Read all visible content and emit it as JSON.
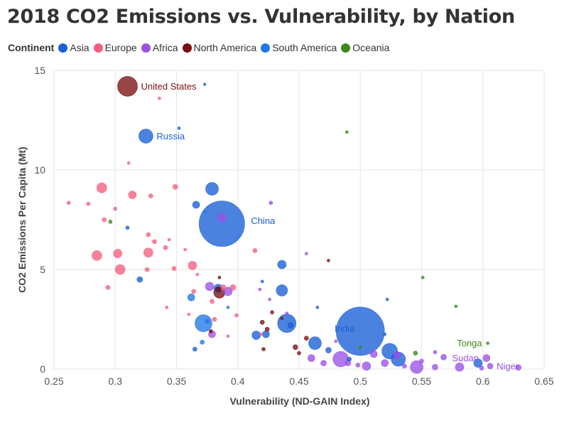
{
  "chart_data": {
    "type": "scatter",
    "title": "2018 CO2 Emissions vs. Vulnerability, by Nation",
    "xlabel": "Vulnerability (ND-GAIN Index)",
    "ylabel": "CO2 Emissions Per Capita (Mt)",
    "xlim": [
      0.25,
      0.65
    ],
    "ylim": [
      0,
      15
    ],
    "xticks": [
      "0.25",
      "0.3",
      "0.35",
      "0.4",
      "0.45",
      "0.5",
      "0.55",
      "0.6",
      "0.65"
    ],
    "yticks": [
      "0",
      "5",
      "10",
      "15"
    ],
    "grid": true,
    "size_encodes": "total emissions",
    "legend": {
      "title": "Continent",
      "placement": "top-left",
      "items": [
        {
          "label": "Asia",
          "color": "#1a5fd6"
        },
        {
          "label": "Europe",
          "color": "#f4607e"
        },
        {
          "label": "Africa",
          "color": "#9a52e6"
        },
        {
          "label": "North America",
          "color": "#7a1111"
        },
        {
          "label": "South America",
          "color": "#1f78e6"
        },
        {
          "label": "Oceania",
          "color": "#3a8a1e"
        }
      ]
    },
    "series": [
      {
        "name": "Asia",
        "color": "#1a5fd6",
        "points": [
          {
            "x": 0.5,
            "y": 1.9,
            "s": 34
          },
          {
            "x": 0.387,
            "y": 7.3,
            "s": 32
          },
          {
            "x": 0.325,
            "y": 11.7,
            "s": 10
          },
          {
            "x": 0.379,
            "y": 9.05,
            "s": 9
          },
          {
            "x": 0.44,
            "y": 2.3,
            "s": 13
          },
          {
            "x": 0.524,
            "y": 0.9,
            "s": 11
          },
          {
            "x": 0.531,
            "y": 0.5,
            "s": 10
          },
          {
            "x": 0.463,
            "y": 1.3,
            "s": 9
          },
          {
            "x": 0.436,
            "y": 3.95,
            "s": 8
          },
          {
            "x": 0.436,
            "y": 5.25,
            "s": 6
          },
          {
            "x": 0.366,
            "y": 8.25,
            "s": 5
          },
          {
            "x": 0.384,
            "y": 4.05,
            "s": 6
          },
          {
            "x": 0.415,
            "y": 1.7,
            "s": 6
          },
          {
            "x": 0.423,
            "y": 1.75,
            "s": 5
          },
          {
            "x": 0.32,
            "y": 4.5,
            "s": 4
          },
          {
            "x": 0.596,
            "y": 0.3,
            "s": 6
          },
          {
            "x": 0.352,
            "y": 12.1,
            "s": 2
          },
          {
            "x": 0.373,
            "y": 14.3,
            "s": 1.8
          },
          {
            "x": 0.31,
            "y": 7.1,
            "s": 2.5
          },
          {
            "x": 0.443,
            "y": 2.2,
            "s": 4
          },
          {
            "x": 0.474,
            "y": 0.95,
            "s": 4
          },
          {
            "x": 0.365,
            "y": 1.0,
            "s": 3
          },
          {
            "x": 0.42,
            "y": 4.4,
            "s": 2
          },
          {
            "x": 0.52,
            "y": 1.75,
            "s": 2
          },
          {
            "x": 0.522,
            "y": 3.5,
            "s": 2
          },
          {
            "x": 0.465,
            "y": 3.1,
            "s": 2
          },
          {
            "x": 0.491,
            "y": 0.5,
            "s": 3
          }
        ]
      },
      {
        "name": "South America",
        "color": "#1f78e6",
        "points": [
          {
            "x": 0.372,
            "y": 2.3,
            "s": 12
          },
          {
            "x": 0.362,
            "y": 3.6,
            "s": 5
          },
          {
            "x": 0.371,
            "y": 1.35,
            "s": 3
          },
          {
            "x": 0.375,
            "y": 2.4,
            "s": 3
          },
          {
            "x": 0.373,
            "y": 7.9,
            "s": 2
          },
          {
            "x": 0.392,
            "y": 3.1,
            "s": 2
          }
        ]
      },
      {
        "name": "Europe",
        "color": "#f4607e",
        "points": [
          {
            "x": 0.289,
            "y": 9.1,
            "s": 7
          },
          {
            "x": 0.285,
            "y": 5.7,
            "s": 7
          },
          {
            "x": 0.304,
            "y": 5.0,
            "s": 7
          },
          {
            "x": 0.327,
            "y": 5.85,
            "s": 6.5
          },
          {
            "x": 0.302,
            "y": 5.8,
            "s": 6
          },
          {
            "x": 0.314,
            "y": 8.75,
            "s": 5.5
          },
          {
            "x": 0.363,
            "y": 5.2,
            "s": 6
          },
          {
            "x": 0.349,
            "y": 9.15,
            "s": 3.5
          },
          {
            "x": 0.329,
            "y": 8.7,
            "s": 3
          },
          {
            "x": 0.278,
            "y": 8.3,
            "s": 2.5
          },
          {
            "x": 0.262,
            "y": 8.35,
            "s": 2.5
          },
          {
            "x": 0.291,
            "y": 7.5,
            "s": 3
          },
          {
            "x": 0.3,
            "y": 8.05,
            "s": 2.5
          },
          {
            "x": 0.327,
            "y": 6.75,
            "s": 3
          },
          {
            "x": 0.332,
            "y": 6.4,
            "s": 3
          },
          {
            "x": 0.341,
            "y": 6.1,
            "s": 3
          },
          {
            "x": 0.326,
            "y": 5.0,
            "s": 3
          },
          {
            "x": 0.348,
            "y": 5.05,
            "s": 3
          },
          {
            "x": 0.294,
            "y": 4.1,
            "s": 3
          },
          {
            "x": 0.311,
            "y": 10.35,
            "s": 2
          },
          {
            "x": 0.336,
            "y": 13.6,
            "s": 2
          },
          {
            "x": 0.388,
            "y": 4.1,
            "s": 4
          },
          {
            "x": 0.396,
            "y": 4.1,
            "s": 4
          },
          {
            "x": 0.364,
            "y": 3.9,
            "s": 3
          },
          {
            "x": 0.414,
            "y": 5.95,
            "s": 3
          },
          {
            "x": 0.379,
            "y": 3.4,
            "s": 3
          },
          {
            "x": 0.399,
            "y": 2.7,
            "s": 2.5
          },
          {
            "x": 0.357,
            "y": 6.0,
            "s": 2
          },
          {
            "x": 0.344,
            "y": 6.5,
            "s": 2
          },
          {
            "x": 0.367,
            "y": 4.75,
            "s": 2
          },
          {
            "x": 0.381,
            "y": 2.5,
            "s": 3
          },
          {
            "x": 0.342,
            "y": 3.1,
            "s": 2
          },
          {
            "x": 0.392,
            "y": 1.65,
            "s": 2
          },
          {
            "x": 0.419,
            "y": 1.75,
            "s": 2
          },
          {
            "x": 0.36,
            "y": 2.75,
            "s": 2
          }
        ]
      },
      {
        "name": "Africa",
        "color": "#9a52e6",
        "points": [
          {
            "x": 0.484,
            "y": 0.5,
            "s": 11
          },
          {
            "x": 0.546,
            "y": 0.1,
            "s": 9
          },
          {
            "x": 0.387,
            "y": 7.6,
            "s": 6
          },
          {
            "x": 0.392,
            "y": 3.9,
            "s": 6
          },
          {
            "x": 0.377,
            "y": 4.15,
            "s": 6
          },
          {
            "x": 0.379,
            "y": 1.75,
            "s": 5
          },
          {
            "x": 0.505,
            "y": 0.15,
            "s": 6
          },
          {
            "x": 0.581,
            "y": 0.1,
            "s": 6
          },
          {
            "x": 0.603,
            "y": 0.55,
            "s": 5
          },
          {
            "x": 0.53,
            "y": 0.7,
            "s": 5
          },
          {
            "x": 0.511,
            "y": 0.75,
            "s": 5
          },
          {
            "x": 0.46,
            "y": 0.55,
            "s": 5
          },
          {
            "x": 0.52,
            "y": 0.3,
            "s": 5
          },
          {
            "x": 0.49,
            "y": 0.3,
            "s": 4
          },
          {
            "x": 0.561,
            "y": 0.1,
            "s": 4
          },
          {
            "x": 0.568,
            "y": 0.6,
            "s": 4
          },
          {
            "x": 0.629,
            "y": 0.08,
            "s": 4
          },
          {
            "x": 0.606,
            "y": 0.15,
            "s": 4
          },
          {
            "x": 0.47,
            "y": 0.3,
            "s": 4
          },
          {
            "x": 0.498,
            "y": 0.2,
            "s": 3
          },
          {
            "x": 0.536,
            "y": 0.15,
            "s": 3
          },
          {
            "x": 0.427,
            "y": 8.35,
            "s": 2.5
          },
          {
            "x": 0.456,
            "y": 5.8,
            "s": 2
          },
          {
            "x": 0.426,
            "y": 3.5,
            "s": 2
          },
          {
            "x": 0.418,
            "y": 4.0,
            "s": 2
          },
          {
            "x": 0.44,
            "y": 2.8,
            "s": 2
          },
          {
            "x": 0.48,
            "y": 1.4,
            "s": 2
          },
          {
            "x": 0.55,
            "y": 0.4,
            "s": 3
          },
          {
            "x": 0.561,
            "y": 0.85,
            "s": 2.5
          },
          {
            "x": 0.599,
            "y": 0.05,
            "s": 3
          }
        ]
      },
      {
        "name": "North America",
        "color": "#7a1111",
        "points": [
          {
            "x": 0.31,
            "y": 14.2,
            "s": 14
          },
          {
            "x": 0.385,
            "y": 3.85,
            "s": 8
          },
          {
            "x": 0.384,
            "y": 4.0,
            "s": 4
          },
          {
            "x": 0.42,
            "y": 2.35,
            "s": 3
          },
          {
            "x": 0.424,
            "y": 2.0,
            "s": 3
          },
          {
            "x": 0.428,
            "y": 2.85,
            "s": 2.5
          },
          {
            "x": 0.447,
            "y": 1.1,
            "s": 3.5
          },
          {
            "x": 0.456,
            "y": 1.55,
            "s": 3
          },
          {
            "x": 0.474,
            "y": 5.45,
            "s": 2
          },
          {
            "x": 0.421,
            "y": 1.0,
            "s": 2.5
          },
          {
            "x": 0.45,
            "y": 0.8,
            "s": 2.5
          },
          {
            "x": 0.385,
            "y": 4.6,
            "s": 2
          },
          {
            "x": 0.378,
            "y": 1.9,
            "s": 2.5
          },
          {
            "x": 0.436,
            "y": 2.55,
            "s": 2
          }
        ]
      },
      {
        "name": "Oceania",
        "color": "#3a8a1e",
        "points": [
          {
            "x": 0.489,
            "y": 11.9,
            "s": 2
          },
          {
            "x": 0.296,
            "y": 7.4,
            "s": 2.5
          },
          {
            "x": 0.551,
            "y": 4.6,
            "s": 2
          },
          {
            "x": 0.578,
            "y": 3.15,
            "s": 2
          },
          {
            "x": 0.5,
            "y": 1.1,
            "s": 2
          },
          {
            "x": 0.545,
            "y": 0.8,
            "s": 3
          },
          {
            "x": 0.604,
            "y": 1.3,
            "s": 2
          }
        ]
      }
    ],
    "annotations": [
      {
        "label": "United States",
        "x": 0.31,
        "y": 14.2,
        "color": "#7a1111",
        "side": "right"
      },
      {
        "label": "Russia",
        "x": 0.325,
        "y": 11.7,
        "color": "#1a5fd6",
        "side": "right"
      },
      {
        "label": "China",
        "x": 0.387,
        "y": 7.3,
        "color": "#1a5fd6",
        "side": "right-far"
      },
      {
        "label": "India",
        "x": 0.5,
        "y": 1.9,
        "color": "#1a5fd6",
        "side": "left-above"
      },
      {
        "label": "Tonga",
        "x": 0.604,
        "y": 1.3,
        "color": "#3a8a1e",
        "side": "left"
      },
      {
        "label": "Sudan",
        "x": 0.603,
        "y": 0.55,
        "color": "#9a52e6",
        "side": "left"
      },
      {
        "label": "Niger",
        "x": 0.606,
        "y": 0.15,
        "color": "#9a52e6",
        "side": "right"
      }
    ]
  }
}
